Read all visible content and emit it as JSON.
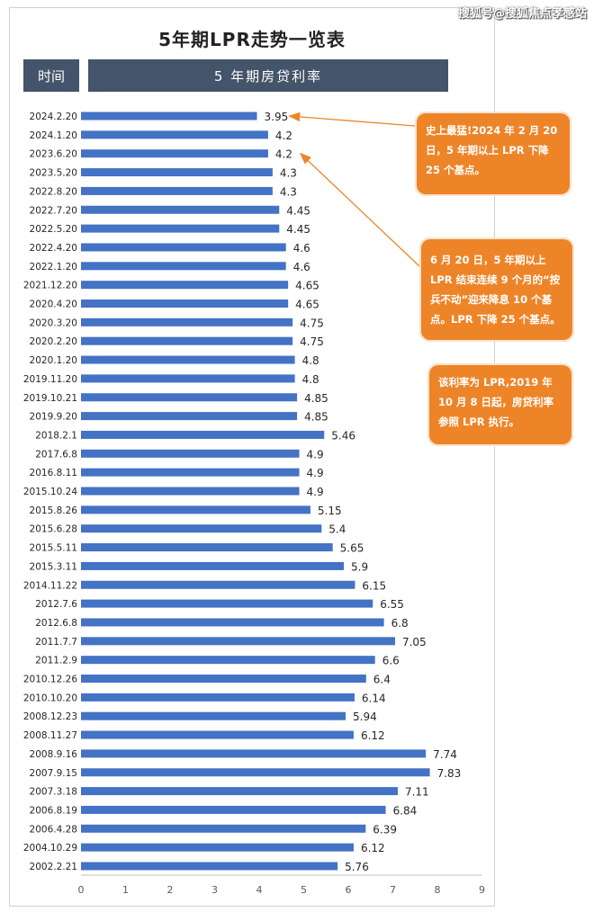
{
  "watermark": "搜狐号@搜狐焦点孝感站",
  "chart_data": {
    "type": "bar",
    "orientation": "horizontal",
    "title": "5年期LPR走势一览表",
    "header": {
      "time_label": "时间",
      "rate_label": "5 年期房贷利率"
    },
    "categories": [
      "2024.2.20",
      "2024.1.20",
      "2023.6.20",
      "2023.5.20",
      "2022.8.20",
      "2022.7.20",
      "2022.5.20",
      "2022.4.20",
      "2022.1.20",
      "2021.12.20",
      "2020.4.20",
      "2020.3.20",
      "2020.2.20",
      "2020.1.20",
      "2019.11.20",
      "2019.10.21",
      "2019.9.20",
      "2018.2.1",
      "2017.6.8",
      "2016.8.11",
      "2015.10.24",
      "2015.8.26",
      "2015.6.28",
      "2015.5.11",
      "2015.3.11",
      "2014.11.22",
      "2012.7.6",
      "2012.6.8",
      "2011.7.7",
      "2011.2.9",
      "2010.12.26",
      "2010.10.20",
      "2008.12.23",
      "2008.11.27",
      "2008.9.16",
      "2007.9.15",
      "2007.3.18",
      "2006.8.19",
      "2006.4.28",
      "2004.10.29",
      "2002.2.21"
    ],
    "values": [
      3.95,
      4.2,
      4.2,
      4.3,
      4.3,
      4.45,
      4.45,
      4.6,
      4.6,
      4.65,
      4.65,
      4.75,
      4.75,
      4.8,
      4.8,
      4.85,
      4.85,
      5.46,
      4.9,
      4.9,
      4.9,
      5.15,
      5.4,
      5.65,
      5.9,
      6.15,
      6.55,
      6.8,
      7.05,
      6.6,
      6.4,
      6.14,
      5.94,
      6.12,
      7.74,
      7.83,
      7.11,
      6.84,
      6.39,
      6.12,
      5.76
    ],
    "value_labels": [
      "3.95",
      "4.2",
      "4.2",
      "4.3",
      "4.3",
      "4.45",
      "4.45",
      "4.6",
      "4.6",
      "4.65",
      "4.65",
      "4.75",
      "4.75",
      "4.8",
      "4.8",
      "4.85",
      "4.85",
      "5.46",
      "4.9",
      "4.9",
      "4.9",
      "5.15",
      "5.4",
      "5.65",
      "5.9",
      "6.15",
      "6.55",
      "6.8",
      "7.05",
      "6.6",
      "6.4",
      "6.14",
      "5.94",
      "6.12",
      "7.74",
      "7.83",
      "7.11",
      "6.84",
      "6.39",
      "6.12",
      "5.76"
    ],
    "xlim": [
      0,
      9
    ],
    "x_ticks": [
      "0",
      "1",
      "2",
      "3",
      "4",
      "5",
      "6",
      "7",
      "8",
      "9"
    ],
    "bar_color": "#4472c4",
    "annotations": [
      {
        "text": "史上最猛!2024 年 2 月 20 日，5 年期以上 LPR 下降 25 个基点。",
        "target_category": "2024.2.20"
      },
      {
        "text": "6 月 20 日，5 年期以上 LPR 结束连续 9 个月的“按兵不动”迎来降息 10 个基点。LPR 下降 25 个基点。",
        "target_category": "2023.6.20"
      },
      {
        "text": "该利率为 LPR,2019 年 10 月 8 日起，房贷利率参照 LPR 执行。"
      }
    ],
    "callout_color": "#ee8428"
  }
}
